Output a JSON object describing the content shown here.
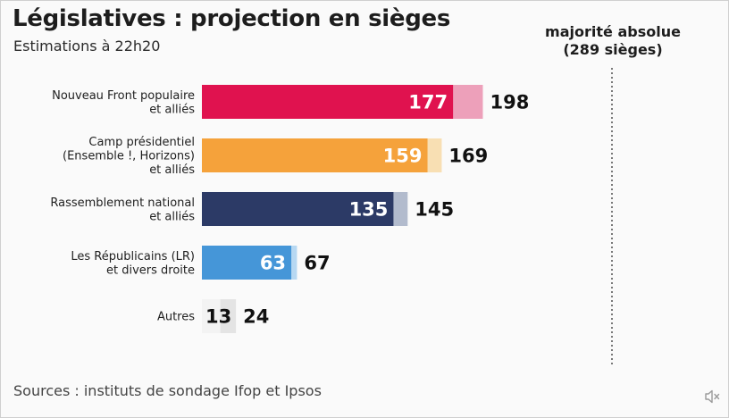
{
  "chart_data": {
    "type": "bar",
    "orientation": "horizontal",
    "title": "Législatives : projection en sièges",
    "subtitle": "Estimations à 22h20",
    "categories": [
      [
        "Nouveau Front populaire",
        "et alliés"
      ],
      [
        "Camp présidentiel",
        "(Ensemble !, Horizons)",
        "et alliés"
      ],
      [
        "Rassemblement national",
        "et alliés"
      ],
      [
        "Les Républicains (LR)",
        "et divers droite"
      ],
      [
        "Autres"
      ]
    ],
    "series": [
      {
        "values": [
          177,
          159,
          135,
          63,
          13
        ]
      },
      {
        "values": [
          198,
          169,
          145,
          67,
          24
        ]
      }
    ],
    "colors": {
      "primary": [
        "#e0124f",
        "#f5a23b",
        "#2c3a66",
        "#4596d8",
        "#f3f3f3"
      ],
      "secondary": [
        "#eda0ba",
        "#f8dfb3",
        "#b2bbcd",
        "#b7d8f2",
        "#e4e4e4"
      ],
      "inner_label": [
        "#ffffff",
        "#ffffff",
        "#ffffff",
        "#ffffff",
        "#111111"
      ]
    },
    "reference_line": {
      "value": 289,
      "label_line1": "majorité absolue",
      "label_line2": "(289 sièges)",
      "style": "dotted"
    },
    "xlim": [
      0,
      289
    ],
    "grid": false,
    "legend": "none"
  },
  "source": "Sources : instituts de sondage Ifop et Ipsos",
  "icons": {
    "corner": "muted-speaker-icon"
  }
}
